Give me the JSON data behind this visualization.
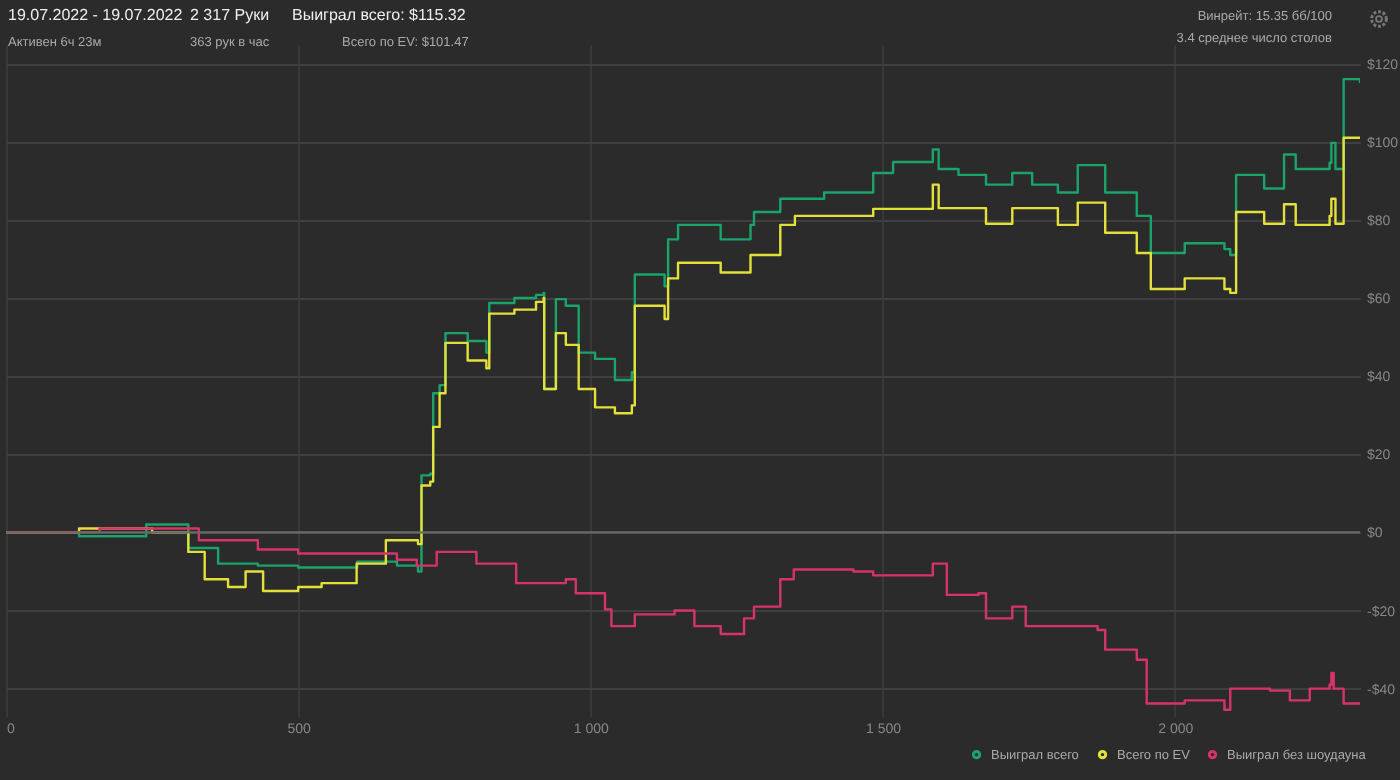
{
  "chart_data": {
    "type": "step",
    "title": "19.07.2022 - 19.07.2022",
    "subtitle": "Активен 6ч 23м",
    "annotations": [
      "2 317 Руки",
      "363 рук в час",
      "Выиграл всего: $115.32",
      "Всего по EV: $101.47",
      "Винрейт: 15.35 бб/100",
      "3.4 среднее число столов"
    ],
    "xlim": [
      0,
      2317
    ],
    "xticks": [
      0,
      500,
      {
        "value": 1000,
        "label": "1 000"
      },
      {
        "value": 1500,
        "label": "1 500"
      },
      {
        "value": 2000,
        "label": "2 000"
      }
    ],
    "ylim": [
      -47,
      125
    ],
    "yticks": [
      {
        "value": -40,
        "label": "-$40"
      },
      {
        "value": -20,
        "label": "-$20"
      },
      {
        "value": 0,
        "label": "$0"
      },
      {
        "value": 20,
        "label": "$20"
      },
      {
        "value": 40,
        "label": "$40"
      },
      {
        "value": 60,
        "label": "$60"
      },
      {
        "value": 80,
        "label": "$80"
      },
      {
        "value": 100,
        "label": "$100"
      },
      {
        "value": 120,
        "label": "$120"
      }
    ],
    "grid": true,
    "legend": "bottom right",
    "ref_lines": [
      {
        "axis": "y",
        "value": 0,
        "label": null,
        "color": "#6a6a6a"
      }
    ],
    "series": [
      {
        "name": "Выиграл всего",
        "color": "#1aa36a",
        "x": [
          0,
          125,
          240,
          312,
          363,
          431,
          500,
          601,
          669,
          705,
          711,
          726,
          731,
          742,
          752,
          790,
          822,
          827,
          870,
          907,
          920,
          921,
          940,
          941,
          958,
          980,
          1008,
          1042,
          1071,
          1076,
          1127,
          1133,
          1150,
          1223,
          1274,
          1280,
          1325,
          1400,
          1484,
          1518,
          1586,
          1596,
          1630,
          1677,
          1722,
          1756,
          1800,
          1834,
          1868,
          1881,
          1935,
          1959,
          2017,
          2085,
          2095,
          2105,
          2153,
          2187,
          2207,
          2265,
          2268,
          2275,
          2285,
          2289,
          2317
        ],
        "values": [
          0,
          -1,
          2,
          -4,
          -8,
          -8.5,
          -9,
          -7.5,
          -8.5,
          -10,
          14.6,
          15,
          35.6,
          37.7,
          51,
          49,
          46,
          58.7,
          60,
          60.8,
          61.3,
          36.7,
          36.7,
          59.7,
          58,
          46,
          44.4,
          39,
          41,
          66,
          63,
          75,
          78.7,
          75,
          78.7,
          82,
          85.4,
          87,
          92,
          94.8,
          98,
          93,
          91.5,
          89,
          92,
          89,
          87,
          94,
          94,
          87,
          81,
          71.5,
          74,
          72.5,
          71,
          91.5,
          88,
          96.7,
          93,
          94.6,
          99.7,
          93,
          93,
          116,
          115
        ]
      },
      {
        "name": "Всего по EV",
        "color": "#e3e03a",
        "x": [
          0,
          125,
          250,
          312,
          340,
          380,
          410,
          440,
          500,
          540,
          600,
          650,
          705,
          711,
          726,
          731,
          742,
          752,
          790,
          822,
          827,
          870,
          907,
          920,
          921,
          940,
          941,
          958,
          980,
          1008,
          1042,
          1071,
          1076,
          1127,
          1133,
          1150,
          1223,
          1274,
          1325,
          1350,
          1484,
          1586,
          1596,
          1677,
          1722,
          1800,
          1834,
          1868,
          1881,
          1935,
          1959,
          2017,
          2085,
          2095,
          2105,
          2153,
          2187,
          2207,
          2265,
          2268,
          2275,
          2285,
          2289,
          2317
        ],
        "values": [
          0,
          1,
          0,
          -5,
          -12,
          -14,
          -10,
          -15,
          -14,
          -13,
          -8,
          -2,
          -3,
          12,
          13,
          27,
          35.6,
          48.5,
          44,
          42,
          56,
          57,
          59,
          60,
          36.7,
          36.7,
          51,
          48,
          36.7,
          32,
          30.5,
          32.5,
          58,
          54.6,
          65,
          69,
          66.5,
          71,
          78.7,
          81,
          82.8,
          89,
          83,
          79,
          83,
          78.7,
          84.4,
          84.4,
          76.7,
          71.5,
          62.3,
          65,
          62.3,
          61.3,
          82,
          79,
          84,
          78.7,
          81,
          85.4,
          79,
          79,
          101,
          101
        ]
      },
      {
        "name": "Выиграл без шоудауна",
        "color": "#d6336c",
        "x": [
          0,
          160,
          330,
          431,
          500,
          669,
          703,
          737,
          805,
          873,
          958,
          975,
          1025,
          1036,
          1076,
          1144,
          1178,
          1223,
          1263,
          1280,
          1325,
          1348,
          1450,
          1484,
          1586,
          1610,
          1664,
          1677,
          1722,
          1745,
          1868,
          1881,
          1935,
          1952,
          2017,
          2085,
          2095,
          2163,
          2197,
          2231,
          2265,
          2268,
          2272,
          2289,
          2317
        ],
        "values": [
          0,
          1,
          -2,
          -4.4,
          -5.4,
          -7,
          -8.5,
          -5,
          -8,
          -13,
          -12,
          -15.6,
          -19.7,
          -24,
          -21,
          -20,
          -24,
          -26,
          -22,
          -19,
          -12,
          -9.5,
          -10,
          -11,
          -8,
          -16,
          -15.6,
          -22,
          -19,
          -24,
          -25,
          -30,
          -32.6,
          -43.8,
          -43,
          -45.4,
          -40,
          -40.5,
          -43,
          -40,
          -39,
          -36,
          -40,
          -43.8,
          -43.8
        ]
      }
    ]
  }
}
